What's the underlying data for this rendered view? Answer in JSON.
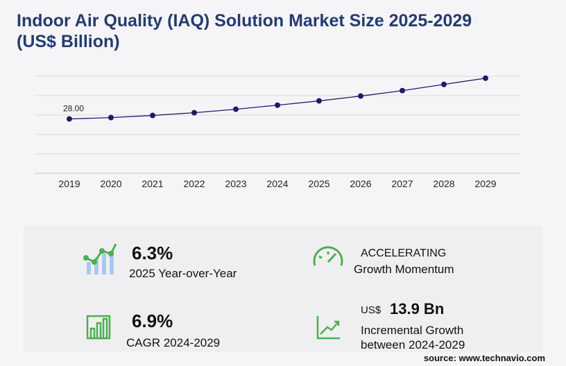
{
  "chart_data": {
    "type": "line",
    "title": "Indoor Air Quality (IAQ) Solution Market Size 2025-2029",
    "subtitle": "(US$ Billion)",
    "categories": [
      "2019",
      "2020",
      "2021",
      "2022",
      "2023",
      "2024",
      "2025",
      "2026",
      "2027",
      "2028",
      "2029"
    ],
    "series": [
      {
        "color": "#1c1c6b",
        "values": [
          28.0,
          28.7,
          29.8,
          31.2,
          33.0,
          35.1,
          37.3,
          39.8,
          42.6,
          45.8,
          49.0
        ],
        "value_labels": [
          "28.00",
          null,
          null,
          null,
          null,
          null,
          null,
          null,
          null,
          null,
          null
        ]
      }
    ],
    "ylim": [
      0,
      50
    ],
    "grid": true
  },
  "highlights": [
    {
      "value": "6.3%",
      "label": "2025 Year-over-Year"
    },
    {
      "value": "ACCELERATING",
      "label": "Growth Momentum"
    },
    {
      "value": "6.9%",
      "label": "CAGR 2024-2029"
    },
    {
      "unit": "US$",
      "value": "13.9 Bn",
      "label": [
        "Incremental Growth",
        "between 2024-2029"
      ]
    }
  ],
  "source": "source: www.technavio.com"
}
